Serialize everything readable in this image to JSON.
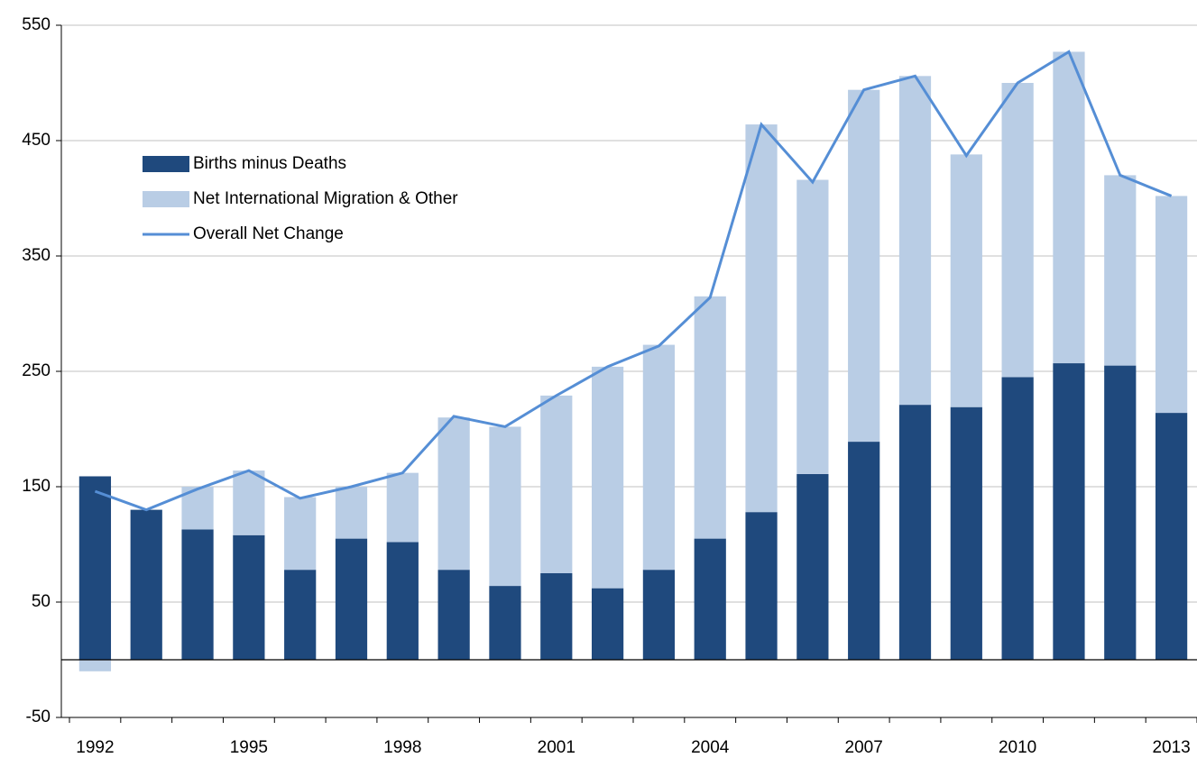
{
  "chart_data": {
    "type": "bar",
    "stacked": true,
    "categories": [
      "1992",
      null,
      null,
      "1995",
      null,
      null,
      "1998",
      null,
      null,
      "2001",
      null,
      null,
      "2004",
      null,
      null,
      "2007",
      null,
      null,
      "2010",
      null,
      null,
      "2013"
    ],
    "series": [
      {
        "name": "Births minus Deaths",
        "color": "#1f497d",
        "values": [
          159,
          130,
          113,
          108,
          78,
          105,
          102,
          78,
          64,
          75,
          62,
          78,
          105,
          128,
          161,
          189,
          221,
          219,
          245,
          257,
          255,
          214
        ]
      },
      {
        "name": "Net International Migration & Other",
        "color": "#b9cde5",
        "values": [
          -10,
          0,
          37,
          56,
          63,
          45,
          60,
          132,
          138,
          154,
          192,
          195,
          210,
          336,
          255,
          305,
          285,
          219,
          255,
          270,
          165,
          188
        ]
      },
      {
        "name": "Overall Net Change",
        "color": "#558ed5",
        "type": "line",
        "values": [
          146,
          130,
          148,
          164,
          140,
          150,
          162,
          211,
          202,
          229,
          254,
          272,
          314,
          464,
          414,
          494,
          506,
          437,
          500,
          527,
          420,
          402
        ]
      }
    ],
    "ylim": [
      -50,
      550
    ],
    "yticks": [
      -50,
      50,
      150,
      250,
      350,
      450,
      550
    ],
    "grid": true,
    "legend": "upper left"
  }
}
